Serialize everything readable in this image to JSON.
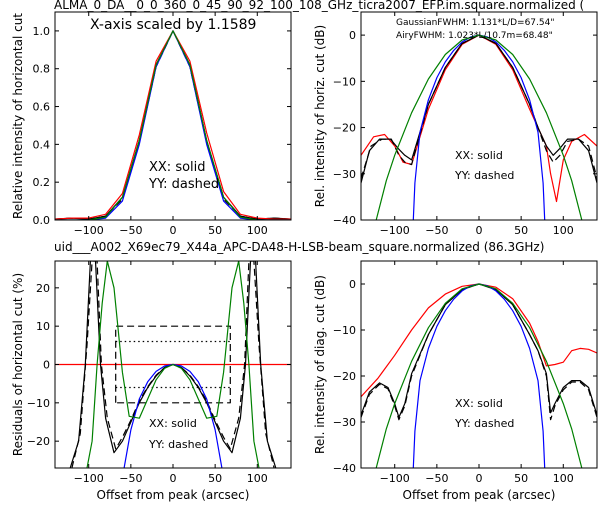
{
  "figure": {
    "top_title": "ALMA_0_DA__0_0_360_0_45_90_92_100_108_GHz_ticra2007_EFP.im.square.normalized (",
    "mid_title": "uid___A002_X69ec79_X44a_APC-DA48-H-LSB-beam_square.normalized (86.3GHz)",
    "mid_title_color": "#ff0000"
  },
  "chart_data": [
    {
      "id": "p1",
      "type": "line",
      "xlim": [
        -140,
        140
      ],
      "ylim": [
        0,
        1.1
      ],
      "ylabel": "Relative intensity of horizontal cut",
      "xlabel": "",
      "xticks": [
        -100,
        -50,
        0,
        50,
        100
      ],
      "xtick_labels": [
        "−100",
        "−50",
        "0",
        "50",
        "100"
      ],
      "yticks": [
        0,
        0.2,
        0.4,
        0.6,
        0.8,
        1.0
      ],
      "ytick_labels": [
        "0.0",
        "0.2",
        "0.4",
        "0.6",
        "0.8",
        "1.0"
      ],
      "annotations": [
        "X-axis scaled by 1.1589",
        "XX: solid",
        "YY: dashed"
      ],
      "series": [
        {
          "color": "#000000",
          "style": "solid",
          "x": [
            -140,
            -120,
            -100,
            -80,
            -60,
            -40,
            -20,
            0,
            20,
            40,
            60,
            80,
            100,
            120,
            140
          ],
          "y": [
            0.005,
            0.01,
            0.005,
            0.02,
            0.12,
            0.42,
            0.82,
            1.0,
            0.82,
            0.42,
            0.12,
            0.02,
            0.005,
            0.01,
            0.005
          ]
        },
        {
          "color": "#000000",
          "style": "dashed",
          "x": [
            -140,
            -120,
            -100,
            -80,
            -60,
            -40,
            -20,
            0,
            20,
            40,
            60,
            80,
            100,
            120,
            140
          ],
          "y": [
            0.005,
            0.01,
            0.005,
            0.02,
            0.11,
            0.41,
            0.81,
            1.0,
            0.81,
            0.41,
            0.11,
            0.02,
            0.005,
            0.01,
            0.005
          ]
        },
        {
          "color": "#ff0000",
          "style": "solid",
          "x": [
            -140,
            -120,
            -100,
            -80,
            -60,
            -40,
            -20,
            0,
            20,
            40,
            60,
            80,
            100,
            120,
            140
          ],
          "y": [
            0.005,
            0.01,
            0.01,
            0.03,
            0.14,
            0.45,
            0.84,
            1.0,
            0.84,
            0.46,
            0.15,
            0.03,
            0.01,
            0.005,
            0.005
          ]
        },
        {
          "color": "#0000ff",
          "style": "solid",
          "x": [
            -140,
            -100,
            -80,
            -60,
            -40,
            -20,
            0,
            20,
            40,
            60,
            80,
            100,
            140
          ],
          "y": [
            0,
            0,
            0.01,
            0.1,
            0.4,
            0.81,
            1.0,
            0.81,
            0.4,
            0.1,
            0.01,
            0,
            0
          ]
        },
        {
          "color": "#008000",
          "style": "solid",
          "x": [
            -140,
            -100,
            -80,
            -60,
            -40,
            -20,
            0,
            20,
            40,
            60,
            80,
            100,
            140
          ],
          "y": [
            0,
            0.0,
            0.015,
            0.12,
            0.42,
            0.82,
            1.0,
            0.82,
            0.42,
            0.12,
            0.015,
            0.0,
            0
          ]
        }
      ]
    },
    {
      "id": "p2",
      "type": "line",
      "xlim": [
        -140,
        140
      ],
      "ylim": [
        -40,
        5
      ],
      "ylabel": "Rel. intensity of horiz. cut (dB)",
      "xlabel": "",
      "xticks": [
        -100,
        -50,
        0,
        50,
        100
      ],
      "xtick_labels": [
        "−100",
        "−50",
        "0",
        "50",
        "100"
      ],
      "yticks": [
        -40,
        -30,
        -20,
        -10,
        0
      ],
      "ytick_labels": [
        "−40",
        "−30",
        "−20",
        "−10",
        "0"
      ],
      "annotations": [
        "XX: solid",
        "YY: dashed"
      ],
      "legend_lines": [
        {
          "text": "GaussianFWHM: 1.131*L/D=67.54\"",
          "color": "#008000"
        },
        {
          "text": "AiryFWHM: 1.023*L/10.7m=68.48\"",
          "color": "#0000ff"
        }
      ],
      "series": [
        {
          "color": "#ff0000",
          "style": "solid",
          "x": [
            -140,
            -125,
            -112,
            -100,
            -90,
            -80,
            -60,
            -40,
            -20,
            0,
            20,
            40,
            60,
            70,
            80,
            85,
            92,
            100,
            110,
            125,
            140
          ],
          "y": [
            -26,
            -22,
            -21.5,
            -24,
            -27.5,
            -28,
            -16,
            -7.5,
            -2,
            0,
            -2,
            -7.5,
            -16,
            -20,
            -24,
            -30,
            -36,
            -27,
            -23,
            -21.5,
            -24
          ]
        },
        {
          "color": "#000000",
          "style": "solid",
          "x": [
            -140,
            -130,
            -118,
            -105,
            -96,
            -88,
            -80,
            -60,
            -40,
            -20,
            0,
            20,
            40,
            60,
            70,
            80,
            88,
            96,
            105,
            118,
            130,
            140
          ],
          "y": [
            -32,
            -25,
            -22.5,
            -22.5,
            -24.5,
            -26,
            -27,
            -15,
            -7,
            -1.8,
            0,
            -1.8,
            -7,
            -15,
            -20,
            -24,
            -26,
            -24.5,
            -22.5,
            -22.5,
            -25,
            -32
          ]
        },
        {
          "color": "#000000",
          "style": "dashed",
          "x": [
            -140,
            -128,
            -115,
            -104,
            -95,
            -88,
            -80,
            -60,
            -40,
            -20,
            0,
            20,
            40,
            60,
            70,
            80,
            88,
            96,
            105,
            118,
            130,
            140
          ],
          "y": [
            -31,
            -24,
            -22.5,
            -22.5,
            -26,
            -27.5,
            -28,
            -15,
            -7,
            -1.8,
            0,
            -1.8,
            -7,
            -15,
            -20,
            -25,
            -27.5,
            -26,
            -23,
            -22.5,
            -24,
            -31
          ]
        },
        {
          "color": "#0000ff",
          "style": "solid",
          "x": [
            -78,
            -76,
            -70,
            -60,
            -50,
            -40,
            -30,
            -20,
            -10,
            0,
            10,
            20,
            30,
            40,
            50,
            60,
            70,
            76,
            78
          ],
          "y": [
            -40,
            -32,
            -21,
            -14,
            -9.2,
            -5.8,
            -3.3,
            -1.5,
            -0.4,
            0,
            -0.4,
            -1.5,
            -3.3,
            -5.8,
            -9.2,
            -14,
            -21,
            -32,
            -40
          ]
        },
        {
          "color": "#008000",
          "style": "solid",
          "x": [
            -122,
            -110,
            -100,
            -80,
            -60,
            -40,
            -20,
            0,
            20,
            40,
            60,
            80,
            100,
            110,
            122
          ],
          "y": [
            -40,
            -31.5,
            -26,
            -16.8,
            -9.5,
            -4.2,
            -1.05,
            0,
            -1.05,
            -4.2,
            -9.5,
            -16.8,
            -26,
            -31.5,
            -40
          ]
        }
      ]
    },
    {
      "id": "p3",
      "type": "line",
      "xlim": [
        -140,
        140
      ],
      "ylim": [
        -27,
        27
      ],
      "ylabel": "Residuals of horizontal cut (%)",
      "xlabel": "Offset from peak (arcsec)",
      "xticks": [
        -100,
        -50,
        0,
        50,
        100
      ],
      "xtick_labels": [
        "−100",
        "−50",
        "0",
        "50",
        "100"
      ],
      "yticks": [
        -20,
        -10,
        0,
        10,
        20
      ],
      "ytick_labels": [
        "−20",
        "−10",
        "0",
        "10",
        "20"
      ],
      "annotations": [
        "XX: solid",
        "YY: dashed"
      ],
      "series": [
        {
          "color": "#ff0000",
          "style": "solid",
          "x": [
            -140,
            140
          ],
          "y": [
            0,
            0
          ]
        },
        {
          "color": "#000000",
          "style": "dashed",
          "x": [
            -68,
            -68,
            68,
            68,
            -68
          ],
          "y": [
            -10,
            10,
            10,
            -10,
            -10
          ]
        },
        {
          "color": "#000000",
          "style": "dotted",
          "x": [
            -68,
            68
          ],
          "y": [
            6,
            6
          ]
        },
        {
          "color": "#000000",
          "style": "dotted",
          "x": [
            -68,
            68
          ],
          "y": [
            -6,
            -6
          ]
        },
        {
          "color": "#000000",
          "style": "solid",
          "x": [
            -122,
            -112,
            -104,
            -98,
            -92,
            -86,
            -80,
            -70,
            -60,
            -50,
            -40,
            -30,
            -20,
            -10,
            0,
            10,
            20,
            30,
            40,
            50,
            60,
            70,
            80,
            86,
            92,
            98,
            104,
            112,
            122
          ],
          "y": [
            -27,
            -20,
            0,
            27,
            27,
            0,
            -14,
            -23,
            -20,
            -15,
            -10,
            -6,
            -3,
            -0.8,
            0,
            -0.8,
            -3,
            -6,
            -10,
            -15,
            -20,
            -23,
            -14,
            0,
            27,
            27,
            0,
            -20,
            -27
          ]
        },
        {
          "color": "#000000",
          "style": "dashed",
          "x": [
            -120,
            -110,
            -102,
            -96,
            -90,
            -85,
            -78,
            -68,
            -60,
            -50,
            -40,
            -30,
            -20,
            -10,
            0,
            10,
            20,
            30,
            40,
            50,
            60,
            68,
            78,
            85,
            90,
            96,
            102,
            110,
            120
          ],
          "y": [
            -27,
            -18,
            5,
            27,
            27,
            0,
            -14,
            -22,
            -19,
            -14.5,
            -9.5,
            -5.8,
            -2.8,
            -0.8,
            0,
            -0.8,
            -2.8,
            -5.8,
            -9.5,
            -14.5,
            -19,
            -22,
            -14,
            0,
            27,
            27,
            5,
            -18,
            -27
          ]
        },
        {
          "color": "#0000ff",
          "style": "solid",
          "x": [
            -58,
            -50,
            -40,
            -30,
            -20,
            -10,
            0,
            10,
            20,
            30,
            40,
            50,
            58
          ],
          "y": [
            -27,
            -17,
            -9,
            -4.5,
            -1.8,
            -0.4,
            0,
            -0.4,
            -1.8,
            -4.5,
            -9,
            -17,
            -27
          ]
        },
        {
          "color": "#008000",
          "style": "solid",
          "x": [
            -102,
            -96,
            -90,
            -84,
            -78,
            -70,
            -60,
            -52,
            -40,
            -30,
            -20,
            -10,
            0,
            10,
            20,
            30,
            40,
            52,
            60,
            70,
            78,
            84,
            90,
            96,
            102
          ],
          "y": [
            -27,
            -20,
            0,
            16,
            27,
            20,
            -2,
            -13.5,
            -14,
            -9,
            -4,
            -1,
            0,
            -1,
            -4,
            -9,
            -14,
            -13.5,
            -2,
            20,
            27,
            16,
            0,
            -20,
            -27
          ]
        }
      ]
    },
    {
      "id": "p4",
      "type": "line",
      "xlim": [
        -140,
        140
      ],
      "ylim": [
        -40,
        5
      ],
      "ylabel": "Rel. intensity of diag. cut (dB)",
      "xlabel": "Offset from peak (arcsec)",
      "xticks": [
        -100,
        -50,
        0,
        50,
        100
      ],
      "xtick_labels": [
        "−100",
        "−50",
        "0",
        "50",
        "100"
      ],
      "yticks": [
        -40,
        -30,
        -20,
        -10,
        0
      ],
      "ytick_labels": [
        "−40",
        "−30",
        "−20",
        "−10",
        "0"
      ],
      "annotations": [
        "XX: solid",
        "YY: dashed"
      ],
      "series": [
        {
          "color": "#ff0000",
          "style": "solid",
          "x": [
            -140,
            -120,
            -100,
            -80,
            -60,
            -40,
            -20,
            0,
            20,
            40,
            60,
            70,
            80,
            90,
            100,
            110,
            120,
            130,
            140
          ],
          "y": [
            -24.5,
            -20.5,
            -15.5,
            -10,
            -5.2,
            -2.2,
            -0.5,
            0,
            -0.7,
            -3.2,
            -8.5,
            -12.5,
            -17.8,
            -17.5,
            -17,
            -14.5,
            -14,
            -14.2,
            -15
          ]
        },
        {
          "color": "#000000",
          "style": "solid",
          "x": [
            -140,
            -130,
            -118,
            -108,
            -100,
            -95,
            -88,
            -80,
            -60,
            -40,
            -20,
            0,
            20,
            40,
            60,
            70,
            80,
            85,
            90,
            100,
            110,
            120,
            130,
            140
          ],
          "y": [
            -28.5,
            -23.5,
            -21.5,
            -22.5,
            -26,
            -29,
            -26,
            -19.5,
            -11,
            -4.5,
            -1.2,
            0,
            -1.2,
            -4.5,
            -11,
            -14.5,
            -19.5,
            -28,
            -26,
            -22.5,
            -21,
            -21,
            -22.5,
            -28.5
          ]
        },
        {
          "color": "#000000",
          "style": "dashed",
          "x": [
            -140,
            -130,
            -118,
            -108,
            -100,
            -95,
            -88,
            -80,
            -60,
            -40,
            -20,
            0,
            20,
            40,
            60,
            70,
            80,
            85,
            90,
            100,
            110,
            120,
            130,
            140
          ],
          "y": [
            -29,
            -24,
            -21.8,
            -22.8,
            -26.5,
            -29.5,
            -26.5,
            -20,
            -11,
            -4.5,
            -1.2,
            0,
            -1.2,
            -4.5,
            -11,
            -14.5,
            -20,
            -29.5,
            -26.5,
            -23,
            -21.3,
            -21.3,
            -23,
            -29
          ]
        },
        {
          "color": "#0000ff",
          "style": "solid",
          "x": [
            -78,
            -76,
            -70,
            -60,
            -50,
            -40,
            -30,
            -20,
            -10,
            0,
            10,
            20,
            30,
            40,
            50,
            60,
            70,
            76,
            78
          ],
          "y": [
            -40,
            -32,
            -21,
            -14,
            -9.2,
            -5.8,
            -3.3,
            -1.5,
            -0.4,
            0,
            -0.4,
            -1.5,
            -3.3,
            -5.8,
            -9.2,
            -14,
            -21,
            -32,
            -40
          ]
        },
        {
          "color": "#008000",
          "style": "solid",
          "x": [
            -122,
            -110,
            -100,
            -80,
            -60,
            -40,
            -20,
            0,
            20,
            40,
            60,
            80,
            100,
            110,
            122
          ],
          "y": [
            -40,
            -31.5,
            -26,
            -16.8,
            -9.5,
            -4.2,
            -1.05,
            0,
            -1.05,
            -4.2,
            -9.5,
            -16.8,
            -26,
            -31.5,
            -40
          ]
        }
      ]
    }
  ]
}
